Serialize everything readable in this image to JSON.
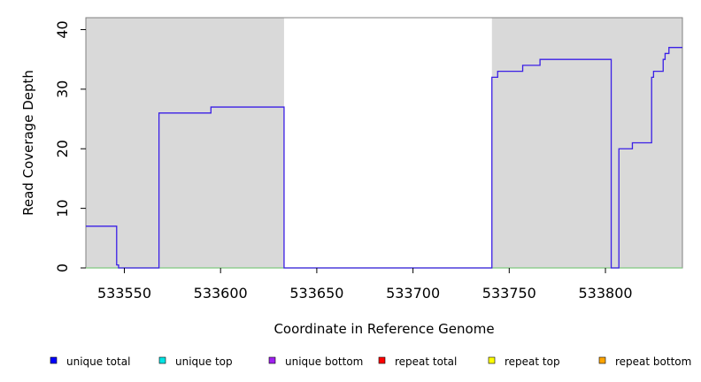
{
  "chart_data": {
    "type": "line",
    "title": "",
    "xlabel": "Coordinate in Reference Genome",
    "ylabel": "Read Coverage Depth",
    "xlim": [
      533530,
      533840
    ],
    "ylim": [
      0,
      42
    ],
    "xticks": [
      533550,
      533600,
      533650,
      533700,
      533750,
      533800
    ],
    "yticks": [
      0,
      10,
      20,
      30,
      40
    ],
    "xtick_labels": [
      "533550",
      "533600",
      "533650",
      "533700",
      "533750",
      "533800"
    ],
    "ytick_labels": [
      "0",
      "10",
      "20",
      "30",
      "40"
    ],
    "grid": false,
    "shaded_regions": [
      {
        "x_start": 533530,
        "x_end": 533633
      },
      {
        "x_start": 533741,
        "x_end": 533840
      }
    ],
    "series": [
      {
        "name": "unique total",
        "color": "#3a1fe6",
        "step": true,
        "points": [
          [
            533530,
            7
          ],
          [
            533546,
            7
          ],
          [
            533546,
            0.5
          ],
          [
            533547,
            0.5
          ],
          [
            533547,
            0
          ],
          [
            533568,
            0
          ],
          [
            533568,
            26
          ],
          [
            533595,
            26
          ],
          [
            533595,
            27
          ],
          [
            533633,
            27
          ],
          [
            533633,
            0
          ],
          [
            533741,
            0
          ],
          [
            533741,
            32
          ],
          [
            533744,
            32
          ],
          [
            533744,
            33
          ],
          [
            533757,
            33
          ],
          [
            533757,
            34
          ],
          [
            533766,
            34
          ],
          [
            533766,
            35
          ],
          [
            533803,
            35
          ],
          [
            533803,
            0
          ],
          [
            533807,
            0
          ],
          [
            533807,
            20
          ],
          [
            533814,
            20
          ],
          [
            533814,
            21
          ],
          [
            533824,
            21
          ],
          [
            533824,
            32
          ],
          [
            533825,
            32
          ],
          [
            533825,
            33
          ],
          [
            533830,
            33
          ],
          [
            533830,
            35
          ],
          [
            533831,
            35
          ],
          [
            533831,
            36
          ],
          [
            533833,
            36
          ],
          [
            533833,
            37
          ],
          [
            533840,
            37
          ]
        ]
      },
      {
        "name": "repeat total",
        "color": "#80c880",
        "step": true,
        "points": [
          [
            533530,
            0
          ],
          [
            533840,
            0
          ]
        ]
      }
    ],
    "legend": {
      "placement": "bottom",
      "entries": [
        {
          "label": "unique total",
          "color": "#0000ff"
        },
        {
          "label": "unique top",
          "color": "#00e5e5"
        },
        {
          "label": "unique bottom",
          "color": "#a020f0"
        },
        {
          "label": "repeat total",
          "color": "#ff0000"
        },
        {
          "label": "repeat top",
          "color": "#ffff00"
        },
        {
          "label": "repeat bottom",
          "color": "#ffa500"
        }
      ]
    }
  }
}
